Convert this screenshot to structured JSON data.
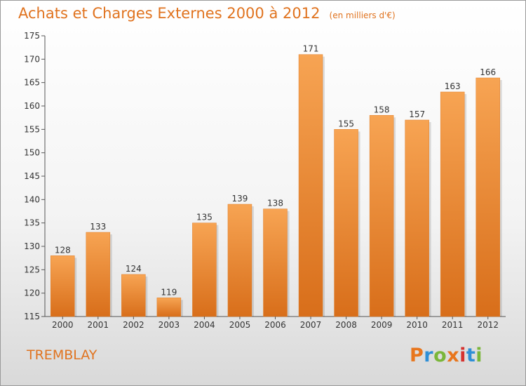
{
  "chart_data": {
    "type": "bar",
    "title": "Achats et Charges Externes 2000 à 2012",
    "subtitle": "(en milliers d'€)",
    "categories": [
      "2000",
      "2001",
      "2002",
      "2003",
      "2004",
      "2005",
      "2006",
      "2007",
      "2008",
      "2009",
      "2010",
      "2011",
      "2012"
    ],
    "values": [
      128,
      133,
      124,
      119,
      135,
      139,
      138,
      171,
      155,
      158,
      157,
      163,
      166
    ],
    "ylim": [
      115,
      175
    ],
    "yticks": [
      115,
      120,
      125,
      130,
      135,
      140,
      145,
      150,
      155,
      160,
      165,
      170,
      175
    ],
    "grid": false,
    "bar_color": "#f09a44"
  },
  "footer": {
    "commune": "TREMBLAY",
    "logo_text": "Proxiti",
    "logo_colors": [
      "#e8761d",
      "#2f8fd6",
      "#7ab63a",
      "#e8761d",
      "#d6322f",
      "#2f8fd6",
      "#7ab63a"
    ]
  }
}
